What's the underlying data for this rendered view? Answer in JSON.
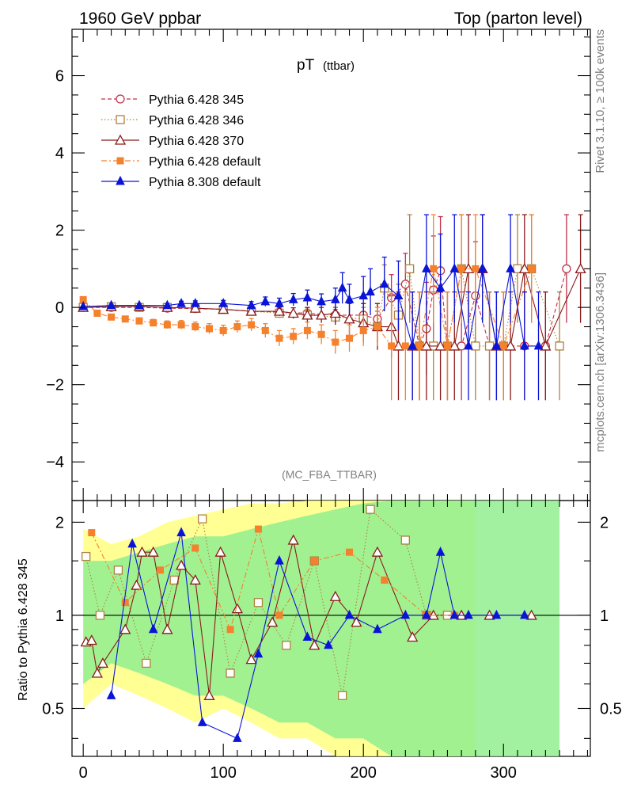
{
  "header": {
    "left": "1960 GeV ppbar",
    "right": "Top (parton level)"
  },
  "side_labels": {
    "rivet": "Rivet 3.1.10, ≥ 100k events",
    "mcplots": "mcplots.cern.ch [arXiv:1306.3436]"
  },
  "plot": {
    "title_main": "pT",
    "title_sub": "(ttbar)",
    "analysis_tag": "(MC_FBA_TTBAR)",
    "ratio_ylabel": "Ratio to Pythia 6.428 345"
  },
  "chart_data": [
    {
      "type": "line",
      "panel": "main",
      "xlim": [
        -8,
        362
      ],
      "ylim": [
        -5,
        7.2
      ],
      "x_ticks": [
        0,
        100,
        200,
        300
      ],
      "y_ticks": [
        -4,
        -2,
        0,
        2,
        4,
        6
      ],
      "y_tick_labels": [
        "−4",
        "−2",
        "0",
        "2",
        "4",
        "6"
      ],
      "legend_position": "top-left",
      "series": [
        {
          "name": "Pythia 6.428 345",
          "color": "#c0304a",
          "marker": "open-circle",
          "dash": "5,3",
          "x": [
            0,
            20,
            40,
            60,
            80,
            100,
            120,
            140,
            160,
            180,
            200,
            210,
            220,
            230,
            240,
            245,
            250,
            255,
            260,
            270,
            280,
            290,
            300,
            315,
            330,
            345
          ],
          "y": [
            0,
            0,
            0,
            -0.02,
            -0.03,
            -0.05,
            -0.1,
            -0.12,
            -0.15,
            -0.2,
            -0.2,
            -0.3,
            0.25,
            0.6,
            -1,
            -0.55,
            0.45,
            0.95,
            -1,
            -1,
            0.3,
            -1,
            -1,
            -1,
            -1,
            1
          ],
          "err": [
            0.02,
            0.03,
            0.04,
            0.05,
            0.06,
            0.08,
            0.1,
            0.12,
            0.14,
            0.2,
            0.3,
            0.4,
            0.6,
            0.8,
            1.4,
            1.2,
            1.4,
            1.4,
            1.4,
            1.4,
            1.4,
            1.4,
            1.4,
            1.4,
            1.4,
            1.4
          ]
        },
        {
          "name": "Pythia 6.428 346",
          "color": "#b08040",
          "marker": "open-square",
          "dash": "1.5,2.5",
          "x": [
            0,
            20,
            40,
            60,
            80,
            100,
            120,
            140,
            160,
            180,
            200,
            210,
            215,
            225,
            233,
            240,
            250,
            260,
            270,
            280,
            290,
            300,
            310,
            320,
            340
          ],
          "y": [
            0,
            0.02,
            0,
            0,
            -0.02,
            -0.05,
            -0.1,
            -0.15,
            -0.2,
            -0.25,
            -0.3,
            -0.5,
            0.5,
            -0.2,
            1,
            -1,
            -1,
            -1,
            1,
            -1,
            -1,
            -1,
            1,
            1,
            -1
          ],
          "err": [
            0.02,
            0.03,
            0.04,
            0.05,
            0.06,
            0.08,
            0.1,
            0.12,
            0.14,
            0.2,
            0.3,
            0.4,
            0.6,
            0.8,
            1.4,
            1.4,
            1.4,
            1.4,
            1.4,
            1.4,
            1.4,
            1.4,
            1.4,
            1.4,
            1.4
          ]
        },
        {
          "name": "Pythia 6.428 370",
          "color": "#8b1a1a",
          "marker": "open-triangle",
          "dash": "",
          "x": [
            0,
            20,
            40,
            60,
            80,
            100,
            120,
            140,
            150,
            160,
            170,
            180,
            190,
            200,
            210,
            220,
            225,
            235,
            245,
            255,
            265,
            275,
            285,
            295,
            305,
            315,
            330,
            355
          ],
          "y": [
            0,
            0.02,
            0.03,
            0,
            -0.02,
            -0.05,
            -0.1,
            -0.1,
            -0.15,
            -0.2,
            -0.2,
            -0.15,
            -0.3,
            -0.4,
            -0.5,
            -0.5,
            -1,
            -1,
            -1,
            -1,
            -1,
            1,
            1,
            -1,
            -1,
            1,
            -1,
            1
          ],
          "err": [
            0.02,
            0.03,
            0.04,
            0.05,
            0.06,
            0.08,
            0.1,
            0.12,
            0.14,
            0.2,
            0.2,
            0.3,
            0.4,
            0.5,
            0.6,
            0.8,
            1.4,
            1.4,
            1.4,
            1.4,
            1.4,
            1.4,
            1.4,
            1.4,
            1.4,
            1.4,
            1.4,
            1.4
          ]
        },
        {
          "name": "Pythia 6.428 default",
          "color": "#f5812c",
          "marker": "filled-square",
          "dash": "7,3,2,3",
          "x": [
            0,
            10,
            20,
            30,
            40,
            50,
            60,
            70,
            80,
            90,
            100,
            110,
            120,
            130,
            140,
            150,
            160,
            170,
            180,
            190,
            200,
            210,
            220,
            230,
            240,
            250,
            260,
            270,
            280,
            300,
            320
          ],
          "y": [
            0.2,
            -0.15,
            -0.25,
            -0.3,
            -0.35,
            -0.4,
            -0.45,
            -0.45,
            -0.5,
            -0.55,
            -0.6,
            -0.5,
            -0.45,
            -0.6,
            -0.8,
            -0.75,
            -0.6,
            -0.7,
            -0.9,
            -0.8,
            -0.6,
            -0.5,
            -1,
            -1,
            -1,
            1,
            -1,
            1,
            1,
            -1,
            1
          ],
          "err": [
            0.05,
            0.05,
            0.06,
            0.07,
            0.08,
            0.09,
            0.1,
            0.11,
            0.12,
            0.13,
            0.14,
            0.15,
            0.16,
            0.18,
            0.2,
            0.2,
            0.22,
            0.25,
            0.3,
            0.35,
            0.4,
            0.5,
            1.4,
            1.4,
            1.4,
            1.4,
            1.4,
            1.4,
            1.4,
            1.4,
            1.4
          ]
        },
        {
          "name": "Pythia 8.308 default",
          "color": "#0a14d8",
          "marker": "filled-triangle",
          "dash": "",
          "x": [
            0,
            20,
            40,
            60,
            70,
            80,
            100,
            120,
            130,
            140,
            150,
            160,
            170,
            180,
            185,
            190,
            200,
            205,
            215,
            225,
            235,
            245,
            255,
            265,
            275,
            285,
            295,
            305,
            315,
            325
          ],
          "y": [
            0.02,
            0.05,
            0.05,
            0.05,
            0.1,
            0.1,
            0.1,
            0.05,
            0.15,
            0.1,
            0.2,
            0.25,
            0.15,
            0.2,
            0.5,
            0.2,
            0.3,
            0.4,
            0.6,
            0.3,
            -1,
            1,
            0.5,
            1,
            -1,
            1,
            -1,
            1,
            -1,
            -1
          ],
          "err": [
            0.02,
            0.03,
            0.04,
            0.05,
            0.06,
            0.07,
            0.08,
            0.1,
            0.12,
            0.14,
            0.16,
            0.2,
            0.2,
            0.3,
            0.4,
            0.4,
            0.5,
            0.6,
            0.7,
            0.9,
            1.4,
            1.4,
            1.4,
            1.4,
            1.4,
            1.4,
            1.4,
            1.4,
            1.4,
            1.4
          ]
        }
      ]
    },
    {
      "type": "line",
      "panel": "ratio",
      "xlim": [
        -8,
        362
      ],
      "ylim": [
        0.35,
        2.35
      ],
      "y_scale": "log",
      "x_ticks": [
        0,
        100,
        200,
        300
      ],
      "y_ticks": [
        0.5,
        1,
        2
      ],
      "y_tick_labels": [
        "0.5",
        "1",
        "2"
      ],
      "reference_line": 1,
      "uncertainty_bands": [
        {
          "x": [
            0,
            20,
            40,
            60,
            80,
            100,
            120,
            140,
            160,
            180,
            200,
            220,
            240,
            260,
            280
          ],
          "lo": [
            0.5,
            0.6,
            0.55,
            0.5,
            0.45,
            0.5,
            0.45,
            0.4,
            0.4,
            0.35,
            0.35,
            0.35,
            0.35,
            0.35,
            0.35
          ],
          "hi": [
            1.9,
            1.7,
            1.8,
            2.0,
            2.1,
            2.2,
            2.3,
            2.3,
            2.35,
            2.35,
            2.35,
            2.35,
            2.35,
            2.35,
            2.35
          ],
          "color": "#ffff80"
        },
        {
          "x": [
            0,
            20,
            40,
            60,
            80,
            100,
            120,
            140,
            160,
            180,
            200,
            220,
            240,
            260,
            280,
            320,
            340
          ],
          "lo": [
            0.6,
            0.7,
            0.65,
            0.6,
            0.55,
            0.55,
            0.5,
            0.45,
            0.45,
            0.4,
            0.4,
            0.35,
            0.35,
            0.35,
            0.35,
            0.35,
            0.35
          ],
          "hi": [
            1.5,
            1.5,
            1.6,
            1.7,
            1.8,
            1.8,
            1.9,
            2.0,
            2.1,
            2.2,
            2.3,
            2.35,
            2.35,
            2.35,
            2.35,
            2.35,
            2.35
          ],
          "color": "#90ee90"
        }
      ],
      "series": [
        {
          "name": "Pythia 6.428 346",
          "color": "#b08040",
          "marker": "open-square",
          "dash": "1.5,2.5",
          "x": [
            2,
            12,
            25,
            45,
            65,
            85,
            105,
            125,
            145,
            165,
            185,
            205,
            230,
            245,
            260
          ],
          "y": [
            1.55,
            1.0,
            1.4,
            0.7,
            1.3,
            2.05,
            0.65,
            1.1,
            0.8,
            1.5,
            0.55,
            2.2,
            1.75,
            1.0,
            1.0
          ]
        },
        {
          "name": "Pythia 6.428 370",
          "color": "#8b1a1a",
          "marker": "open-triangle",
          "dash": "",
          "x": [
            2,
            6,
            10,
            14,
            30,
            38,
            42,
            50,
            60,
            70,
            80,
            90,
            98,
            110,
            120,
            135,
            150,
            165,
            180,
            195,
            210,
            235,
            250,
            270,
            290,
            320
          ],
          "y": [
            0.82,
            0.83,
            0.65,
            0.7,
            0.9,
            1.25,
            1.6,
            1.6,
            0.9,
            1.45,
            1.3,
            0.55,
            1.6,
            1.05,
            0.72,
            0.95,
            1.75,
            0.8,
            1.15,
            0.95,
            1.6,
            0.85,
            1.0,
            1.0,
            1.0,
            1.0
          ]
        },
        {
          "name": "Pythia 6.428 default",
          "color": "#f5812c",
          "marker": "filled-square",
          "dash": "7,3,2,3",
          "x": [
            6,
            30,
            55,
            80,
            105,
            125,
            140,
            165,
            190,
            215,
            245,
            265
          ],
          "y": [
            1.85,
            1.1,
            1.4,
            1.65,
            0.9,
            1.9,
            1.0,
            1.5,
            1.6,
            1.3,
            1.0,
            1.0
          ]
        },
        {
          "name": "Pythia 8.308 default",
          "color": "#0a14d8",
          "marker": "filled-triangle",
          "dash": "",
          "x": [
            20,
            35,
            50,
            70,
            85,
            110,
            125,
            140,
            160,
            175,
            190,
            210,
            230,
            245,
            255,
            265,
            275,
            295,
            315
          ],
          "y": [
            0.55,
            1.7,
            0.9,
            1.85,
            0.45,
            0.4,
            0.75,
            1.5,
            0.85,
            0.8,
            1.0,
            0.9,
            1.0,
            1.0,
            1.6,
            1.0,
            1.0,
            1.0,
            1.0
          ]
        }
      ]
    }
  ]
}
